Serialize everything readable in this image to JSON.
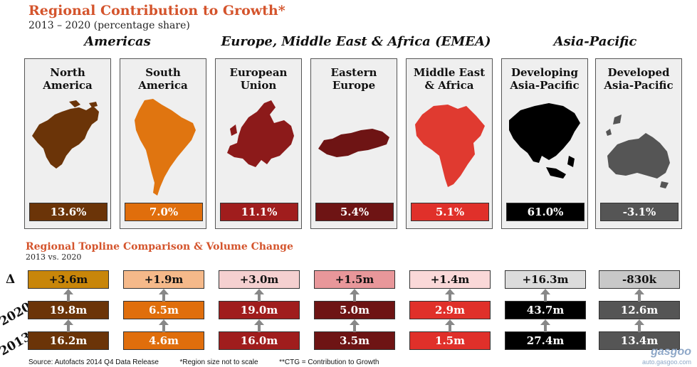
{
  "header": {
    "title": "Regional Contribution to Growth*",
    "subtitle": "2013 – 2020 (percentage share)"
  },
  "groups": [
    "Americas",
    "Europe, Middle East & Africa (EMEA)",
    "Asia-Pacific"
  ],
  "section2": {
    "title": "Regional Topline Comparison & Volume Change",
    "subtitle": "2013 vs. 2020"
  },
  "row_labels": {
    "delta": "Δ",
    "y2020": "2020",
    "y2013": "2013"
  },
  "regions": [
    {
      "name_line1": "North",
      "name_line2": "America",
      "share": "13.6%",
      "delta": "+3.6m",
      "v2020": "19.8m",
      "v2013": "16.2m",
      "color": "#6b3408",
      "delta_color": "#c8860a",
      "map_icon": "north-america-map-icon",
      "map_color": "#6b3408"
    },
    {
      "name_line1": "South",
      "name_line2": "America",
      "share": "7.0%",
      "delta": "+1.9m",
      "v2020": "6.5m",
      "v2013": "4.6m",
      "color": "#e06e0c",
      "delta_color": "#f5b98a",
      "map_icon": "south-america-map-icon",
      "map_color": "#e07510"
    },
    {
      "name_line1": "European",
      "name_line2": "Union",
      "share": "11.1%",
      "delta": "+3.0m",
      "v2020": "19.0m",
      "v2013": "16.0m",
      "color": "#a01d1d",
      "delta_color": "#f5d0d0",
      "map_icon": "europe-map-icon",
      "map_color": "#8c1a1a"
    },
    {
      "name_line1": "Eastern",
      "name_line2": "Europe",
      "share": "5.4%",
      "delta": "+1.5m",
      "v2020": "5.0m",
      "v2013": "3.5m",
      "color": "#6e1414",
      "delta_color": "#e8979a",
      "map_icon": "eastern-europe-map-icon",
      "map_color": "#6e1414"
    },
    {
      "name_line1": "Middle East",
      "name_line2": "& Africa",
      "share": "5.1%",
      "delta": "+1.4m",
      "v2020": "2.9m",
      "v2013": "1.5m",
      "color": "#e0302a",
      "delta_color": "#fad8d8",
      "map_icon": "africa-map-icon",
      "map_color": "#e03a30"
    },
    {
      "name_line1": "Developing",
      "name_line2": "Asia-Pacific",
      "share": "61.0%",
      "delta": "+16.3m",
      "v2020": "43.7m",
      "v2013": "27.4m",
      "color": "#000000",
      "delta_color": "#dcdcdc",
      "map_icon": "developing-asia-map-icon",
      "map_color": "#000000"
    },
    {
      "name_line1": "Developed",
      "name_line2": "Asia-Pacific",
      "share": "-3.1%",
      "delta": "-830k",
      "v2020": "12.6m",
      "v2013": "13.4m",
      "color": "#555555",
      "delta_color": "#c8c8c8",
      "map_icon": "developed-asia-map-icon",
      "map_color": "#555555"
    }
  ],
  "chart_data": {
    "type": "table",
    "title": "Regional Contribution to Growth*",
    "subtitle": "2013 – 2020 (percentage share)",
    "categories": [
      "North America",
      "South America",
      "European Union",
      "Eastern Europe",
      "Middle East & Africa",
      "Developing Asia-Pacific",
      "Developed Asia-Pacific"
    ],
    "series": [
      {
        "name": "share",
        "values": [
          13.6,
          7.0,
          11.1,
          5.4,
          5.1,
          61.0,
          -3.1
        ]
      },
      {
        "name": "Δ",
        "values": [
          3.6,
          1.9,
          3.0,
          1.5,
          1.4,
          16.3,
          -0.83
        ]
      },
      {
        "name": "2020",
        "values": [
          19.8,
          6.5,
          19.0,
          5.0,
          2.9,
          43.7,
          12.6
        ]
      },
      {
        "name": "2013",
        "values": [
          16.2,
          4.6,
          16.0,
          3.5,
          1.5,
          27.4,
          13.4
        ]
      }
    ]
  },
  "footer": {
    "source": "Source: Autofacts 2014 Q4 Data Release",
    "note1": "*Region size not to scale",
    "note2": "**CTG = Contribution to Growth"
  },
  "watermark": {
    "brand": "gasgoo",
    "url": "auto.gasgoo.com"
  }
}
